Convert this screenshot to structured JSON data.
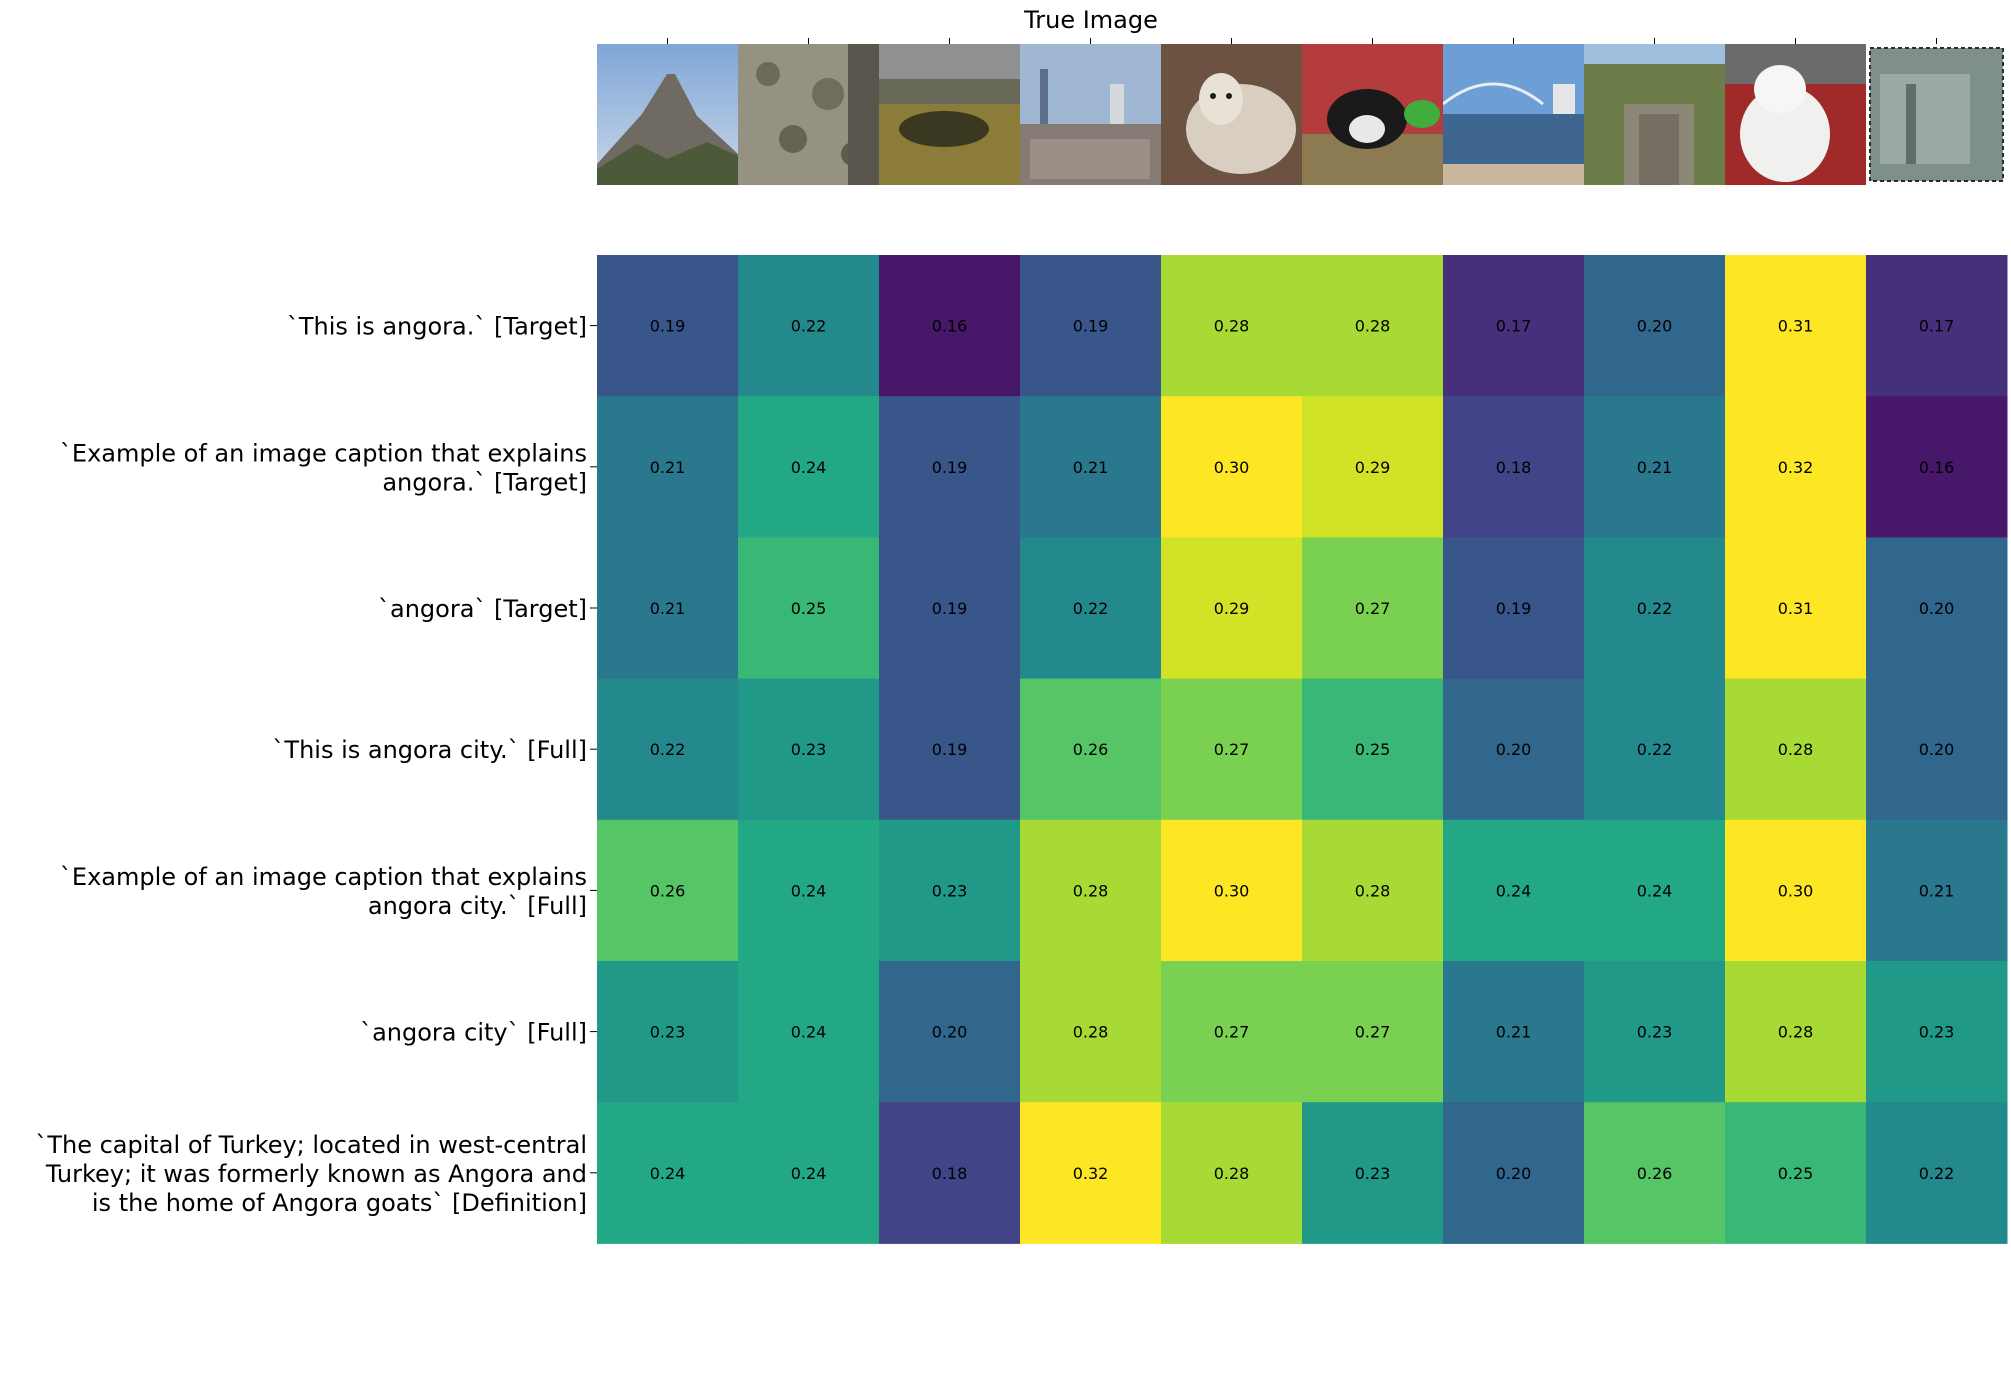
{
  "chart_data": {
    "type": "heatmap",
    "title": "True Image",
    "xlabel": "",
    "ylabel": "",
    "columns": [
      "volcano-photo",
      "rock-texture-photo",
      "pond-landscape-photo",
      "city-skyline-photo",
      "sheep-photo",
      "rabbit-photo",
      "river-bridge-photo",
      "cliff-gorge-photo",
      "white-cat-photo",
      "postage-stamp-photo"
    ],
    "rows": [
      "`This is angora.` [Target]",
      "`Example of an image caption that explains angora.` [Target]",
      "`angora` [Target]",
      "`This is angora city.` [Full]",
      "`Example of an image caption that explains angora city.` [Full]",
      "`angora city` [Full]",
      "`The capital of Turkey; located in west-central Turkey; it was formerly known as Angora and is the home of Angora goats` [Definition]"
    ],
    "row_label_lines": [
      [
        "`This is angora.` [Target]"
      ],
      [
        "`Example of an image caption that explains",
        "angora.` [Target]"
      ],
      [
        "`angora` [Target]"
      ],
      [
        "`This is angora city.` [Full]"
      ],
      [
        "`Example of an image caption that explains",
        "angora city.` [Full]"
      ],
      [
        "`angora city` [Full]"
      ],
      [
        "`The capital of Turkey; located in west-central",
        "Turkey; it was formerly known as Angora and",
        "is the home of Angora goats` [Definition]"
      ]
    ],
    "values": [
      [
        0.19,
        0.22,
        0.16,
        0.19,
        0.28,
        0.28,
        0.17,
        0.2,
        0.31,
        0.17
      ],
      [
        0.21,
        0.24,
        0.19,
        0.21,
        0.3,
        0.29,
        0.18,
        0.21,
        0.32,
        0.16
      ],
      [
        0.21,
        0.25,
        0.19,
        0.22,
        0.29,
        0.27,
        0.19,
        0.22,
        0.31,
        0.2
      ],
      [
        0.22,
        0.23,
        0.19,
        0.26,
        0.27,
        0.25,
        0.2,
        0.22,
        0.28,
        0.2
      ],
      [
        0.26,
        0.24,
        0.23,
        0.28,
        0.3,
        0.28,
        0.24,
        0.24,
        0.3,
        0.21
      ],
      [
        0.23,
        0.24,
        0.2,
        0.28,
        0.27,
        0.27,
        0.21,
        0.23,
        0.28,
        0.23
      ],
      [
        0.24,
        0.24,
        0.18,
        0.32,
        0.28,
        0.23,
        0.2,
        0.26,
        0.25,
        0.22
      ]
    ],
    "value_format": "2 decimals",
    "vmin": 0.15,
    "vmax": 0.3,
    "colormap": "viridis",
    "grid": false,
    "legend": "none"
  }
}
